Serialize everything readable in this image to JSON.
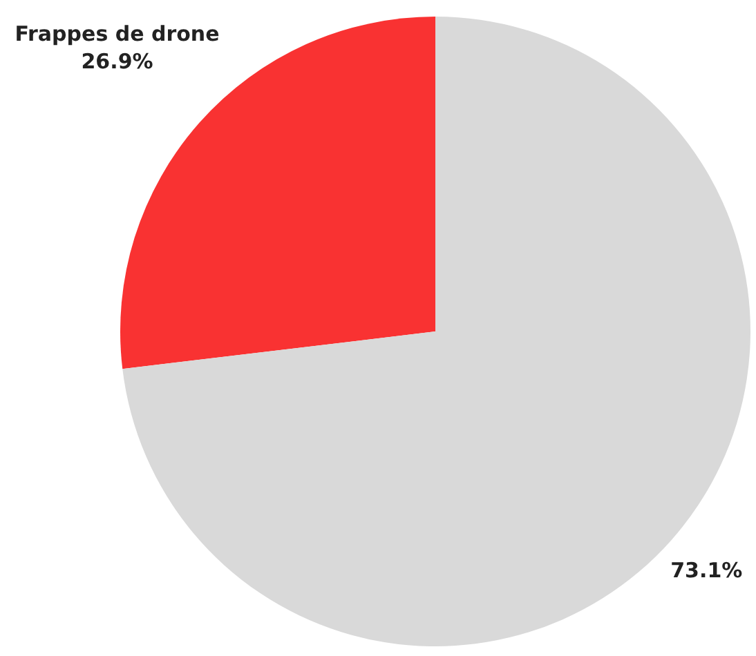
{
  "chart_data": {
    "type": "pie",
    "categories": [
      "Frappes de drone",
      null
    ],
    "values": [
      26.9,
      73.1
    ],
    "colors": [
      "#f93232",
      "#d9d9d9"
    ],
    "value_labels": [
      "26.9%",
      "73.1%"
    ],
    "legend": false
  }
}
